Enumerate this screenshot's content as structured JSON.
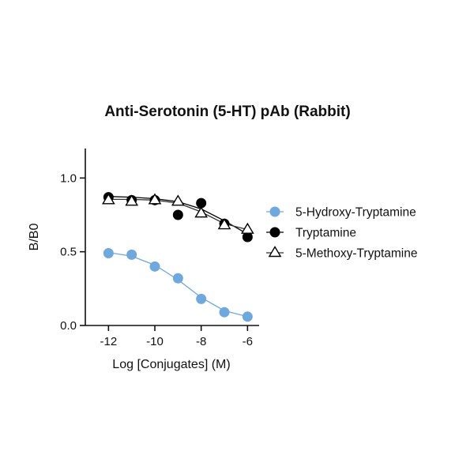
{
  "chart_data": {
    "type": "line",
    "title": "Anti-Serotonin (5-HT) pAb (Rabbit)",
    "xlabel": "Log [Conjugates] (M)",
    "ylabel": "B/B0",
    "xlim": [
      -13,
      -5.5
    ],
    "ylim": [
      0,
      1.2
    ],
    "x_ticks": [
      -12,
      -10,
      -8,
      -6
    ],
    "x_tick_labels": [
      "-12",
      "-10",
      "-8",
      "-6"
    ],
    "y_ticks": [
      0,
      0.5,
      1.0
    ],
    "y_tick_labels": [
      "0.0",
      "0.5",
      "1.0"
    ],
    "grid": false,
    "legend_position": "right",
    "series": [
      {
        "name": "5-Hydroxy-Tryptamine",
        "marker": "circle",
        "color": "#6fa8dc",
        "line_color": "#6fa8dc",
        "points": [
          {
            "x": -12,
            "y": 0.49
          },
          {
            "x": -11,
            "y": 0.48
          },
          {
            "x": -10,
            "y": 0.4
          },
          {
            "x": -9,
            "y": 0.32
          },
          {
            "x": -8,
            "y": 0.18
          },
          {
            "x": -7,
            "y": 0.09
          },
          {
            "x": -6,
            "y": 0.06
          }
        ],
        "fit": [
          {
            "x": -12,
            "y": 0.495
          },
          {
            "x": -11,
            "y": 0.47
          },
          {
            "x": -10,
            "y": 0.41
          },
          {
            "x": -9,
            "y": 0.31
          },
          {
            "x": -8,
            "y": 0.19
          },
          {
            "x": -7,
            "y": 0.1
          },
          {
            "x": -6,
            "y": 0.06
          }
        ]
      },
      {
        "name": "Tryptamine",
        "marker": "circle",
        "color": "#000000",
        "line_color": "#000000",
        "points": [
          {
            "x": -12,
            "y": 0.87
          },
          {
            "x": -11,
            "y": 0.85
          },
          {
            "x": -10,
            "y": 0.85
          },
          {
            "x": -9,
            "y": 0.75
          },
          {
            "x": -8,
            "y": 0.83
          },
          {
            "x": -7,
            "y": 0.69
          },
          {
            "x": -6,
            "y": 0.6
          }
        ],
        "fit": [
          {
            "x": -12,
            "y": 0.875
          },
          {
            "x": -11,
            "y": 0.87
          },
          {
            "x": -10,
            "y": 0.86
          },
          {
            "x": -9,
            "y": 0.84
          },
          {
            "x": -8,
            "y": 0.79
          },
          {
            "x": -7,
            "y": 0.71
          },
          {
            "x": -6,
            "y": 0.62
          }
        ]
      },
      {
        "name": "5-Methoxy-Tryptamine",
        "marker": "triangle-open",
        "color": "#000000",
        "line_color": "#333333",
        "points": [
          {
            "x": -12,
            "y": 0.85
          },
          {
            "x": -11,
            "y": 0.84
          },
          {
            "x": -10,
            "y": 0.85
          },
          {
            "x": -9,
            "y": 0.84
          },
          {
            "x": -8,
            "y": 0.76
          },
          {
            "x": -7,
            "y": 0.68
          },
          {
            "x": -6,
            "y": 0.65
          }
        ],
        "fit": [
          {
            "x": -12,
            "y": 0.855
          },
          {
            "x": -11,
            "y": 0.855
          },
          {
            "x": -10,
            "y": 0.85
          },
          {
            "x": -9,
            "y": 0.83
          },
          {
            "x": -8,
            "y": 0.77
          },
          {
            "x": -7,
            "y": 0.69
          },
          {
            "x": -6,
            "y": 0.65
          }
        ]
      }
    ]
  }
}
